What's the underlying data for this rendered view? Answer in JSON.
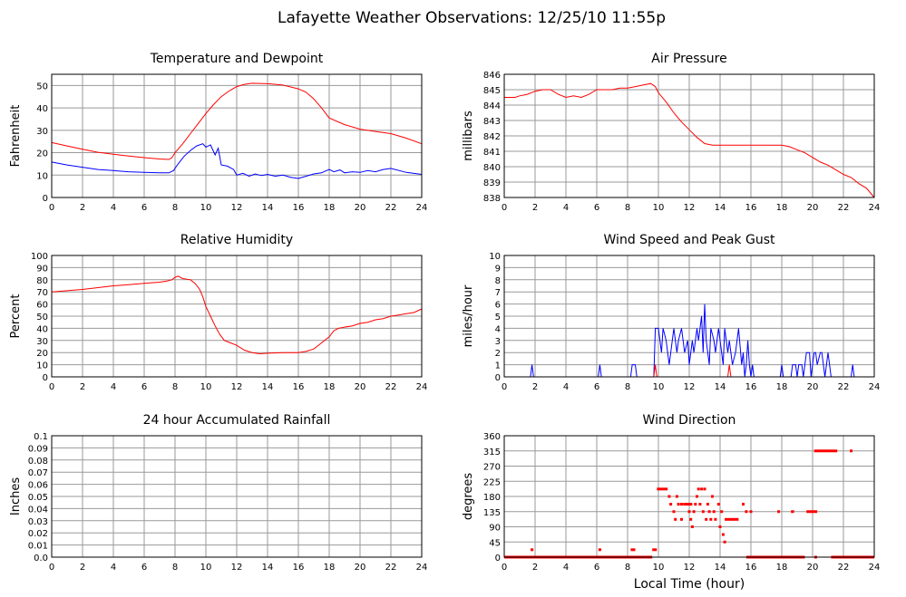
{
  "page_title": "Lafayette Weather Observations: 12/25/10 11:55p",
  "chart_data": [
    {
      "id": "temp",
      "type": "line",
      "title": "Temperature and Dewpoint",
      "xlabel": "",
      "ylabel": "Fahrenheit",
      "xlim": [
        0,
        24
      ],
      "ylim": [
        0,
        55
      ],
      "xticks": [
        0,
        2,
        4,
        6,
        8,
        10,
        12,
        14,
        16,
        18,
        20,
        22,
        24
      ],
      "yticks": [
        0,
        10,
        20,
        30,
        40,
        50
      ],
      "series": [
        {
          "color": "#ff0000",
          "x": [
            0,
            1,
            2,
            3,
            4,
            5,
            6,
            7,
            7.6,
            7.8,
            8,
            8.5,
            9,
            9.5,
            10,
            10.5,
            11,
            11.5,
            12,
            12.5,
            13,
            14,
            15,
            16,
            16.5,
            17,
            17.5,
            18,
            19,
            20,
            21,
            22,
            23,
            24
          ],
          "y": [
            24.5,
            23,
            21.5,
            20.2,
            19.3,
            18.5,
            17.8,
            17.2,
            17,
            17.8,
            20,
            24,
            28.5,
            33,
            37.5,
            41.5,
            45,
            47.5,
            49.5,
            50.5,
            51,
            50.8,
            50.2,
            48.5,
            47,
            44,
            40,
            35.5,
            32.5,
            30.5,
            29.5,
            28.5,
            26.5,
            24
          ]
        },
        {
          "color": "#0000ff",
          "x": [
            0,
            1,
            2,
            3,
            4,
            5,
            6,
            7,
            7.6,
            7.9,
            8.2,
            8.6,
            9,
            9.4,
            9.8,
            10,
            10.3,
            10.6,
            10.8,
            11,
            11.4,
            11.8,
            12,
            12.4,
            12.8,
            13.2,
            13.6,
            14,
            14.5,
            15,
            15.5,
            16,
            16.5,
            17,
            17.5,
            18,
            18.3,
            18.7,
            19,
            19.5,
            20,
            20.5,
            21,
            21.5,
            22,
            23,
            24
          ],
          "y": [
            15.8,
            14.5,
            13.5,
            12.5,
            12,
            11.5,
            11.2,
            11,
            11,
            12,
            15,
            18.5,
            21,
            23,
            24,
            22.5,
            23.5,
            19,
            22,
            14.5,
            14,
            12.5,
            10,
            10.8,
            9.5,
            10.5,
            9.8,
            10.3,
            9.5,
            10,
            9,
            8.5,
            9.5,
            10.5,
            11,
            12.5,
            11.5,
            12.3,
            11,
            11.5,
            11.2,
            12,
            11.5,
            12.5,
            13,
            11.2,
            10.3
          ]
        }
      ]
    },
    {
      "id": "press",
      "type": "line",
      "title": "Air Pressure",
      "xlabel": "",
      "ylabel": "millibars",
      "xlim": [
        0,
        24
      ],
      "ylim": [
        838,
        846
      ],
      "xticks": [
        0,
        2,
        4,
        6,
        8,
        10,
        12,
        14,
        16,
        18,
        20,
        22,
        24
      ],
      "yticks": [
        838,
        839,
        840,
        841,
        842,
        843,
        844,
        845,
        846
      ],
      "series": [
        {
          "color": "#ff0000",
          "x": [
            0,
            0.7,
            1,
            1.5,
            2,
            2.5,
            3,
            3.5,
            4,
            4.5,
            5,
            5.5,
            6,
            6.5,
            7,
            7.5,
            8,
            8.5,
            9,
            9.5,
            9.8,
            10,
            10.5,
            11,
            11.5,
            12,
            12.5,
            13,
            13.5,
            14,
            14.5,
            15,
            16,
            17,
            18,
            18.5,
            19,
            19.5,
            20,
            20.5,
            21,
            21.5,
            22,
            22.5,
            23,
            23.5,
            24
          ],
          "y": [
            844.5,
            844.5,
            844.6,
            844.7,
            844.9,
            845,
            845,
            844.7,
            844.5,
            844.6,
            844.5,
            844.7,
            845,
            845,
            845,
            845.1,
            845.1,
            845.2,
            845.3,
            845.4,
            845.2,
            844.8,
            844.2,
            843.5,
            842.9,
            842.4,
            841.9,
            841.5,
            841.4,
            841.4,
            841.4,
            841.4,
            841.4,
            841.4,
            841.4,
            841.3,
            841.1,
            840.9,
            840.6,
            840.3,
            840.1,
            839.8,
            839.5,
            839.3,
            838.9,
            838.6,
            838
          ]
        }
      ]
    },
    {
      "id": "rh",
      "type": "line",
      "title": "Relative Humidity",
      "xlabel": "",
      "ylabel": "Percent",
      "xlim": [
        0,
        24
      ],
      "ylim": [
        0,
        100
      ],
      "xticks": [
        0,
        2,
        4,
        6,
        8,
        10,
        12,
        14,
        16,
        18,
        20,
        22,
        24
      ],
      "yticks": [
        0,
        10,
        20,
        30,
        40,
        50,
        60,
        70,
        80,
        90,
        100
      ],
      "series": [
        {
          "color": "#ff0000",
          "x": [
            0,
            1,
            2,
            3,
            4,
            5,
            6,
            7,
            7.5,
            7.8,
            8,
            8.2,
            8.5,
            9,
            9.3,
            9.6,
            9.8,
            10,
            10.3,
            10.6,
            10.9,
            11.2,
            11.6,
            12,
            12.5,
            13,
            13.5,
            14,
            15,
            16,
            16.5,
            17,
            17.5,
            18,
            18.3,
            18.6,
            19,
            19.5,
            20,
            20.5,
            21,
            21.5,
            22,
            22.5,
            23,
            23.5,
            24
          ],
          "y": [
            70,
            71,
            72,
            73.5,
            75,
            76,
            77,
            78,
            79,
            80,
            82,
            83,
            81,
            80,
            77,
            72,
            66,
            58,
            50,
            42,
            35,
            30,
            28,
            26,
            22,
            20,
            19,
            19.5,
            20,
            20,
            21,
            23,
            28,
            33,
            38,
            40,
            41,
            42,
            44,
            45,
            47,
            48,
            50,
            51,
            52,
            53,
            56
          ]
        }
      ]
    },
    {
      "id": "wind",
      "type": "line",
      "title": "Wind Speed and Peak Gust",
      "xlabel": "",
      "ylabel": "miles/hour",
      "xlim": [
        0,
        24
      ],
      "ylim": [
        0,
        10
      ],
      "xticks": [
        0,
        2,
        4,
        6,
        8,
        10,
        12,
        14,
        16,
        18,
        20,
        22,
        24
      ],
      "yticks": [
        0,
        1,
        2,
        3,
        4,
        5,
        6,
        7,
        8,
        9,
        10
      ],
      "series": [
        {
          "color": "#0000ff",
          "x": [
            0,
            1.7,
            1.8,
            1.9,
            6.1,
            6.2,
            6.3,
            8.2,
            8.3,
            8.5,
            8.6,
            9.7,
            9.8,
            10,
            10.2,
            10.3,
            10.5,
            10.7,
            10.9,
            11,
            11.2,
            11.3,
            11.5,
            11.7,
            11.9,
            12,
            12.2,
            12.3,
            12.5,
            12.6,
            12.8,
            12.9,
            13,
            13.1,
            13.3,
            13.4,
            13.6,
            13.7,
            13.9,
            14,
            14.2,
            14.3,
            14.5,
            14.6,
            14.8,
            15,
            15.2,
            15.4,
            15.5,
            15.6,
            15.7,
            15.8,
            15.9,
            16,
            16.1,
            16.2,
            17.9,
            18,
            18.1,
            18.6,
            18.7,
            18.9,
            19,
            19.1,
            19.3,
            19.4,
            19.5,
            19.6,
            19.8,
            19.9,
            20,
            20.1,
            20.2,
            20.3,
            20.5,
            20.6,
            20.8,
            21,
            21.1,
            21.2,
            21.4,
            22.5,
            22.6,
            22.7,
            24
          ],
          "y": [
            0,
            0,
            1,
            0,
            0,
            1,
            0,
            0,
            1,
            1,
            0,
            0,
            4,
            4,
            2,
            4,
            3,
            1,
            3,
            4,
            2,
            3,
            4,
            2,
            3,
            1,
            3,
            2,
            4,
            3,
            5,
            2,
            6,
            3,
            1,
            4,
            3,
            2,
            4,
            3,
            1,
            4,
            2,
            3,
            1,
            2,
            4,
            1,
            2,
            0,
            1,
            3,
            1,
            0,
            1,
            0,
            0,
            1,
            0,
            0,
            1,
            1,
            0,
            1,
            1,
            0,
            1,
            2,
            2,
            0,
            1,
            2,
            2,
            1,
            2,
            2,
            0,
            2,
            1,
            0,
            0,
            0,
            1,
            0,
            0
          ]
        },
        {
          "color": "#ff0000",
          "x": [
            0,
            9.7,
            9.8,
            9.9,
            14.5,
            14.6,
            14.7,
            24
          ],
          "y": [
            0,
            0,
            1,
            0,
            0,
            1,
            0,
            0
          ]
        }
      ]
    },
    {
      "id": "rain",
      "type": "line",
      "title": "24 hour Accumulated Rainfall",
      "xlabel": "",
      "ylabel": "Inches",
      "xlim": [
        0,
        24
      ],
      "ylim": [
        0,
        0.1
      ],
      "xticks": [
        0,
        2,
        4,
        6,
        8,
        10,
        12,
        14,
        16,
        18,
        20,
        22,
        24
      ],
      "yticks": [
        0,
        0.01,
        0.02,
        0.03,
        0.04,
        0.05,
        0.06,
        0.07,
        0.08,
        0.09,
        0.1
      ],
      "ytick_labels": [
        "0.0",
        "0.01",
        "0.02",
        "0.03",
        "0.04",
        "0.05",
        "0.06",
        "0.07",
        "0.08",
        "0.09",
        "0.1"
      ],
      "series": [
        {
          "color": "#ff0000",
          "x": [
            0,
            24
          ],
          "y": [
            0,
            0
          ]
        }
      ]
    },
    {
      "id": "dir",
      "type": "scatter",
      "title": "Wind Direction",
      "xlabel": "Local Time (hour)",
      "ylabel": "degrees",
      "xlim": [
        0,
        24
      ],
      "ylim": [
        0,
        360
      ],
      "xticks": [
        0,
        2,
        4,
        6,
        8,
        10,
        12,
        14,
        16,
        18,
        20,
        22,
        24
      ],
      "yticks": [
        0,
        45,
        90,
        135,
        180,
        225,
        270,
        315,
        360
      ],
      "series": [
        {
          "color": "#ff0000",
          "segments": [
            {
              "x": [
                0,
                9.6
              ],
              "y": 0
            },
            {
              "x": [
                15.7,
                19.5
              ],
              "y": 0
            },
            {
              "x": [
                21.2,
                24
              ],
              "y": 0
            },
            {
              "x": [
                9.9,
                10.6
              ],
              "y": 202
            },
            {
              "x": [
                20.1,
                21.6
              ],
              "y": 315
            },
            {
              "x": [
                19.6,
                20.3
              ],
              "y": 135
            },
            {
              "x": [
                18.6,
                18.8
              ],
              "y": 135
            },
            {
              "x": [
                11.6,
                12.2
              ],
              "y": 157
            },
            {
              "x": [
                14.3,
                15.2
              ],
              "y": 112
            },
            {
              "x": [
                8.2,
                8.5
              ],
              "y": 22
            },
            {
              "x": [
                9.6,
                9.9
              ],
              "y": 22
            }
          ],
          "points": [
            [
              1.8,
              22
            ],
            [
              6.2,
              22
            ],
            [
              20.2,
              0
            ],
            [
              22.5,
              315
            ],
            [
              10.7,
              180
            ],
            [
              10.8,
              157
            ],
            [
              11.0,
              135
            ],
            [
              11.1,
              112
            ],
            [
              11.2,
              180
            ],
            [
              11.3,
              157
            ],
            [
              11.5,
              157
            ],
            [
              11.5,
              112
            ],
            [
              12.0,
              135
            ],
            [
              12.1,
              112
            ],
            [
              12.2,
              90
            ],
            [
              12.3,
              135
            ],
            [
              12.4,
              157
            ],
            [
              12.5,
              180
            ],
            [
              12.6,
              202
            ],
            [
              12.7,
              157
            ],
            [
              12.8,
              202
            ],
            [
              12.9,
              135
            ],
            [
              13.0,
              202
            ],
            [
              13.1,
              112
            ],
            [
              13.2,
              157
            ],
            [
              13.3,
              135
            ],
            [
              13.4,
              112
            ],
            [
              13.5,
              180
            ],
            [
              13.6,
              135
            ],
            [
              13.7,
              112
            ],
            [
              13.9,
              157
            ],
            [
              14.0,
              90
            ],
            [
              14.1,
              135
            ],
            [
              14.2,
              67
            ],
            [
              14.3,
              45
            ],
            [
              15.5,
              157
            ],
            [
              15.7,
              135
            ],
            [
              16.0,
              135
            ],
            [
              17.8,
              135
            ],
            [
              19.0,
              0
            ],
            [
              19.3,
              0
            ]
          ]
        }
      ]
    }
  ]
}
